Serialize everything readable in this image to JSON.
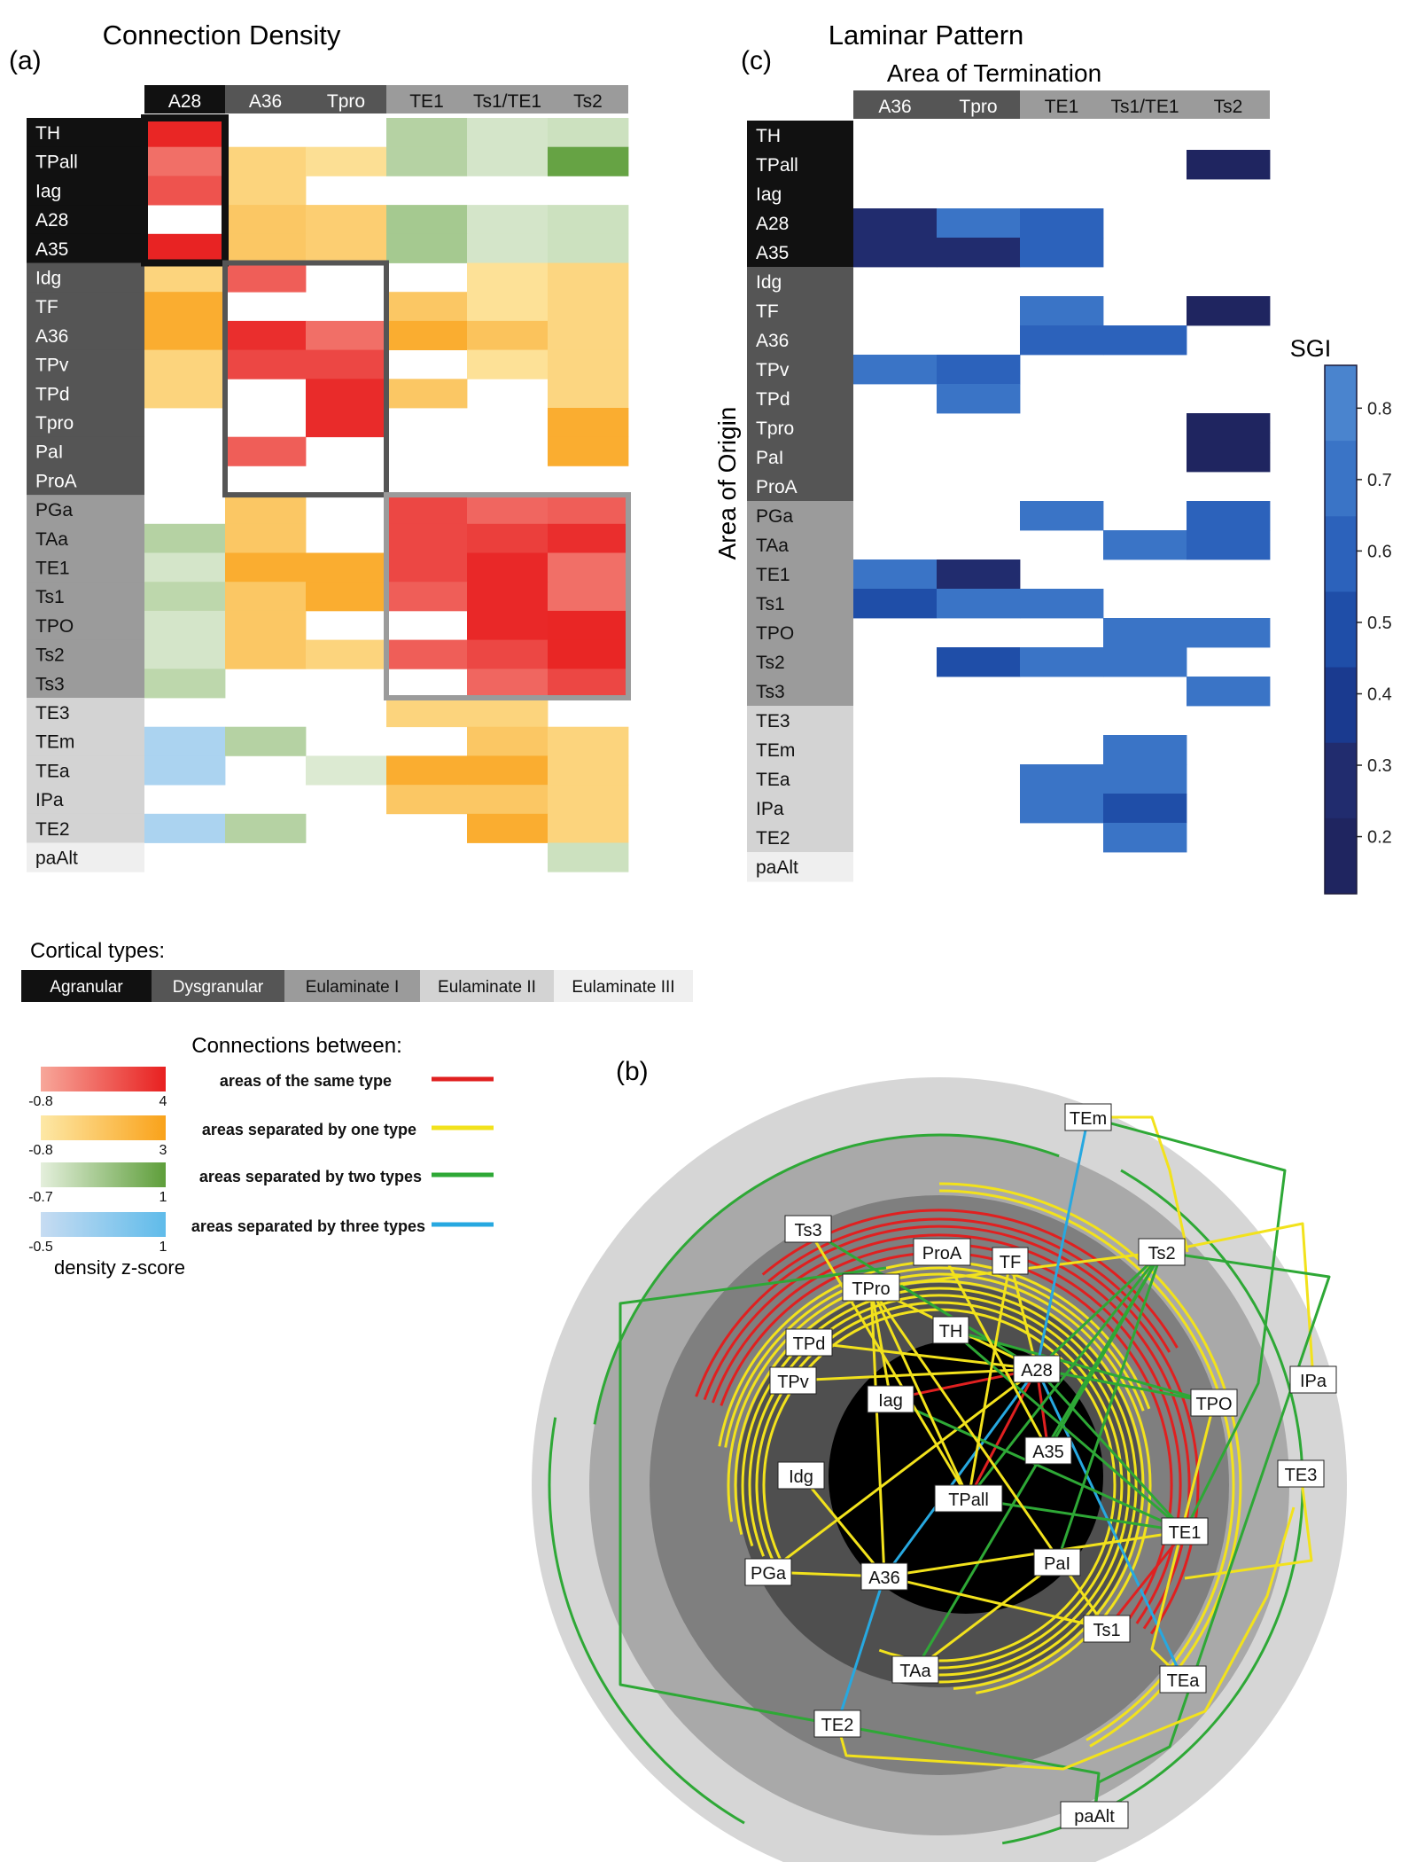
{
  "panel_a": {
    "letter": "(a)",
    "title": "Connection Density",
    "columns": [
      "A28",
      "A36",
      "Tpro",
      "TE1",
      "Ts1/TE1",
      "Ts2"
    ],
    "column_types": [
      "agranular",
      "dysgranular",
      "dysgranular",
      "eulaminate1",
      "eulaminate1",
      "eulaminate1"
    ],
    "rows": [
      "TH",
      "TPall",
      "Iag",
      "A28",
      "A35",
      "Idg",
      "TF",
      "A36",
      "TPv",
      "TPd",
      "Tpro",
      "PaI",
      "ProA",
      "PGa",
      "TAa",
      "TE1",
      "Ts1",
      "TPO",
      "Ts2",
      "Ts3",
      "TE3",
      "TEm",
      "TEa",
      "IPa",
      "TE2",
      "paAlt"
    ],
    "row_types": [
      "agranular",
      "agranular",
      "agranular",
      "agranular",
      "agranular",
      "dysgranular",
      "dysgranular",
      "dysgranular",
      "dysgranular",
      "dysgranular",
      "dysgranular",
      "dysgranular",
      "dysgranular",
      "eulaminate1",
      "eulaminate1",
      "eulaminate1",
      "eulaminate1",
      "eulaminate1",
      "eulaminate1",
      "eulaminate1",
      "eulaminate2",
      "eulaminate2",
      "eulaminate2",
      "eulaminate2",
      "eulaminate2",
      "eulaminate3"
    ]
  },
  "panel_c": {
    "letter": "(c)",
    "title": "Laminar Pattern",
    "col_header": "Area of Termination",
    "row_header": "Area of Origin",
    "columns": [
      "A36",
      "Tpro",
      "TE1",
      "Ts1/TE1",
      "Ts2"
    ],
    "column_types": [
      "dysgranular",
      "dysgranular",
      "eulaminate1",
      "eulaminate1",
      "eulaminate1"
    ],
    "rows": [
      "TH",
      "TPall",
      "Iag",
      "A28",
      "A35",
      "Idg",
      "TF",
      "A36",
      "TPv",
      "TPd",
      "Tpro",
      "PaI",
      "ProA",
      "PGa",
      "TAa",
      "TE1",
      "Ts1",
      "TPO",
      "Ts2",
      "Ts3",
      "TE3",
      "TEm",
      "TEa",
      "IPa",
      "TE2",
      "paAlt"
    ],
    "colorbar_title": "SGI",
    "colorbar_ticks": [
      "0.8",
      "0.7",
      "0.6",
      "0.5",
      "0.4",
      "0.3",
      "0.2"
    ]
  },
  "legend": {
    "cortical_title": "Cortical types:",
    "types": [
      {
        "key": "agranular",
        "label": "Agranular",
        "color": "#111111",
        "text": "#ffffff"
      },
      {
        "key": "dysgranular",
        "label": "Dysgranular",
        "color": "#555555",
        "text": "#ffffff"
      },
      {
        "key": "eulaminate1",
        "label": "Eulaminate I",
        "color": "#9b9b9b",
        "text": "#111111"
      },
      {
        "key": "eulaminate2",
        "label": "Eulaminate II",
        "color": "#d3d3d3",
        "text": "#111111"
      },
      {
        "key": "eulaminate3",
        "label": "Eulaminate III",
        "color": "#efefef",
        "text": "#111111"
      }
    ],
    "connections_title": "Connections between:",
    "scales": [
      {
        "min": "-0.8",
        "max": "4",
        "label": "areas of the same type",
        "from": "#f7a79a",
        "to": "#e82020",
        "line": "#e02020"
      },
      {
        "min": "-0.8",
        "max": "3",
        "label": "areas separated by one type",
        "from": "#fde8a6",
        "to": "#f9a21a",
        "line": "#f2e21c"
      },
      {
        "min": "-0.7",
        "max": "1",
        "label": "areas separated by two types",
        "from": "#e4efdc",
        "to": "#5e9e3a",
        "line": "#2ea836"
      },
      {
        "min": "-0.5",
        "max": "1",
        "label": "areas separated by three types",
        "from": "#c7dcf2",
        "to": "#5fbbea",
        "line": "#27a8e0"
      }
    ],
    "zscore_label": "density z-score"
  },
  "panel_b": {
    "letter": "(b)",
    "nodes": [
      {
        "id": "TEm",
        "label": "TEm"
      },
      {
        "id": "Ts3",
        "label": "Ts3"
      },
      {
        "id": "ProA",
        "label": "ProA"
      },
      {
        "id": "TF",
        "label": "TF"
      },
      {
        "id": "Ts2",
        "label": "Ts2"
      },
      {
        "id": "TPro",
        "label": "TPro"
      },
      {
        "id": "TH",
        "label": "TH"
      },
      {
        "id": "TPd",
        "label": "TPd"
      },
      {
        "id": "A28",
        "label": "A28"
      },
      {
        "id": "TPv",
        "label": "TPv"
      },
      {
        "id": "Iag",
        "label": "Iag"
      },
      {
        "id": "TPO",
        "label": "TPO"
      },
      {
        "id": "IPa",
        "label": "IPa"
      },
      {
        "id": "A35",
        "label": "A35"
      },
      {
        "id": "Idg",
        "label": "Idg"
      },
      {
        "id": "TE3",
        "label": "TE3"
      },
      {
        "id": "TPall",
        "label": "TPall"
      },
      {
        "id": "TE1",
        "label": "TE1"
      },
      {
        "id": "PGa",
        "label": "PGa"
      },
      {
        "id": "A36",
        "label": "A36"
      },
      {
        "id": "PaI",
        "label": "PaI"
      },
      {
        "id": "Ts1",
        "label": "Ts1"
      },
      {
        "id": "TAa",
        "label": "TAa"
      },
      {
        "id": "TEa",
        "label": "TEa"
      },
      {
        "id": "TE2",
        "label": "TE2"
      },
      {
        "id": "paAlt",
        "label": "paAlt"
      }
    ]
  },
  "chart_data": [
    {
      "type": "heatmap",
      "title": "Connection Density",
      "x": [
        "A28",
        "A36",
        "Tpro",
        "TE1",
        "Ts1/TE1",
        "Ts2"
      ],
      "y": [
        "TH",
        "TPall",
        "Iag",
        "A28",
        "A35",
        "Idg",
        "TF",
        "A36",
        "TPv",
        "TPd",
        "Tpro",
        "PaI",
        "ProA",
        "PGa",
        "TAa",
        "TE1",
        "Ts1",
        "TPO",
        "Ts2",
        "Ts3",
        "TE3",
        "TEm",
        "TEa",
        "IPa",
        "TE2",
        "paAlt"
      ],
      "colorscale": "density z-score",
      "values": [
        [
          3.8,
          null,
          null,
          -0.1,
          -0.5,
          -0.4
        ],
        [
          1.2,
          0.3,
          -0.3,
          -0.1,
          -0.5,
          0.9
        ],
        [
          2.2,
          0.3,
          null,
          null,
          null,
          null
        ],
        [
          null,
          1.0,
          0.6,
          0.1,
          -0.5,
          -0.4
        ],
        [
          3.9,
          1.0,
          0.6,
          0.1,
          -0.5,
          -0.4
        ],
        [
          0.3,
          1.8,
          null,
          null,
          -0.4,
          0.2
        ],
        [
          2.4,
          null,
          null,
          1.0,
          -0.4,
          0.2
        ],
        [
          2.4,
          3.5,
          1.2,
          2.4,
          1.2,
          0.2
        ],
        [
          0.3,
          2.6,
          2.6,
          null,
          -0.4,
          0.2
        ],
        [
          0.3,
          null,
          3.6,
          1.0,
          null,
          0.2
        ],
        [
          null,
          null,
          3.6,
          null,
          null,
          2.4
        ],
        [
          null,
          1.8,
          null,
          null,
          null,
          2.4
        ],
        [
          null,
          null,
          null,
          null,
          null,
          null
        ],
        [
          null,
          1.0,
          null,
          2.6,
          1.5,
          1.8
        ],
        [
          -0.1,
          1.0,
          null,
          2.6,
          2.9,
          3.5
        ],
        [
          -0.5,
          2.4,
          2.4,
          2.6,
          3.7,
          1.2
        ],
        [
          -0.2,
          1.0,
          2.4,
          1.8,
          3.7,
          1.2
        ],
        [
          -0.5,
          1.0,
          null,
          null,
          3.7,
          3.8
        ],
        [
          -0.5,
          1.0,
          0.3,
          1.8,
          2.6,
          3.8
        ],
        [
          -0.2,
          null,
          null,
          null,
          1.5,
          2.6
        ],
        [
          null,
          null,
          null,
          0.3,
          0.3,
          null
        ],
        [
          -0.1,
          -0.1,
          null,
          null,
          1.0,
          0.3
        ],
        [
          -0.1,
          null,
          -0.6,
          2.4,
          2.4,
          0.3
        ],
        [
          null,
          null,
          null,
          1.0,
          1.0,
          0.3
        ],
        [
          -0.1,
          -0.1,
          null,
          null,
          2.4,
          0.3
        ],
        [
          null,
          null,
          null,
          null,
          null,
          -0.4
        ]
      ]
    },
    {
      "type": "heatmap",
      "title": "Laminar Pattern",
      "xlabel": "Area of Termination",
      "ylabel": "Area of Origin",
      "x": [
        "A36",
        "Tpro",
        "TE1",
        "Ts1/TE1",
        "Ts2"
      ],
      "y": [
        "TH",
        "TPall",
        "Iag",
        "A28",
        "A35",
        "Idg",
        "TF",
        "A36",
        "TPv",
        "TPd",
        "Tpro",
        "PaI",
        "ProA",
        "PGa",
        "TAa",
        "TE1",
        "Ts1",
        "TPO",
        "Ts2",
        "Ts3",
        "TE3",
        "TEm",
        "TEa",
        "IPa",
        "TE2",
        "paAlt"
      ],
      "colorscale": "SGI",
      "colorbar_ticks": [
        0.8,
        0.7,
        0.6,
        0.5,
        0.4,
        0.3,
        0.2
      ],
      "vrange": [
        0.12,
        0.86
      ],
      "values": [
        [
          null,
          null,
          null,
          null,
          null
        ],
        [
          null,
          null,
          null,
          null,
          0.2
        ],
        [
          null,
          null,
          null,
          null,
          null
        ],
        [
          0.25,
          0.65,
          0.55,
          null,
          null
        ],
        [
          0.25,
          0.25,
          0.55,
          null,
          null
        ],
        [
          null,
          null,
          null,
          null,
          null
        ],
        [
          null,
          null,
          0.65,
          null,
          0.2
        ],
        [
          null,
          null,
          0.55,
          0.55,
          null
        ],
        [
          0.65,
          0.55,
          null,
          null,
          null
        ],
        [
          null,
          0.65,
          null,
          null,
          null
        ],
        [
          null,
          null,
          null,
          null,
          0.2
        ],
        [
          null,
          null,
          null,
          null,
          0.2
        ],
        [
          null,
          null,
          null,
          null,
          null
        ],
        [
          null,
          null,
          0.65,
          null,
          0.55
        ],
        [
          null,
          null,
          null,
          0.65,
          0.55
        ],
        [
          0.75,
          0.25,
          null,
          null,
          null
        ],
        [
          0.5,
          0.65,
          0.7,
          null,
          null
        ],
        [
          null,
          null,
          null,
          0.65,
          0.65
        ],
        [
          null,
          0.5,
          0.65,
          0.65,
          null
        ],
        [
          null,
          null,
          null,
          null,
          0.65
        ],
        [
          null,
          null,
          null,
          null,
          null
        ],
        [
          null,
          null,
          null,
          0.7,
          null
        ],
        [
          null,
          null,
          0.65,
          0.65,
          null
        ],
        [
          null,
          null,
          0.7,
          0.5,
          null
        ],
        [
          null,
          null,
          null,
          0.7,
          null
        ],
        [
          null,
          null,
          null,
          null,
          null
        ]
      ]
    },
    {
      "type": "network",
      "node_labels": [
        "TEm",
        "Ts3",
        "ProA",
        "TF",
        "Ts2",
        "TPro",
        "TH",
        "TPd",
        "A28",
        "TPv",
        "Iag",
        "TPO",
        "IPa",
        "A35",
        "Idg",
        "TE3",
        "TPall",
        "TE1",
        "PGa",
        "A36",
        "PaI",
        "Ts1",
        "TAa",
        "TEa",
        "TE2",
        "paAlt"
      ]
    }
  ]
}
